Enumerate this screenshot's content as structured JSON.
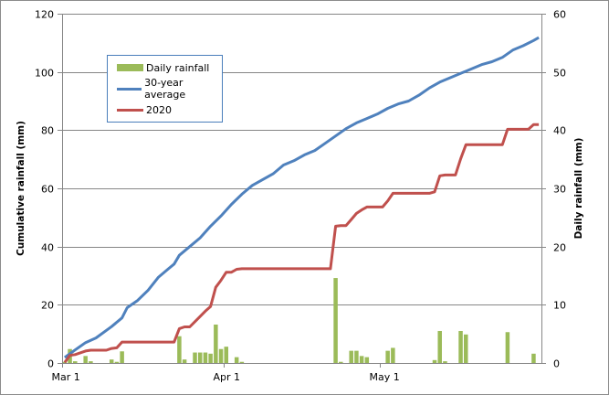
{
  "chart_data": {
    "type": "bar+line",
    "title": "",
    "xlabel": "",
    "ylabel": "Cumulative rainfall (mm)",
    "y2label": "Daily rainfall (mm)",
    "ylim": [
      0,
      120
    ],
    "y2lim": [
      0,
      60
    ],
    "yticks": [
      "0",
      "20",
      "40",
      "60",
      "80",
      "100",
      "120"
    ],
    "y2ticks": [
      "0",
      "10",
      "20",
      "30",
      "40",
      "50",
      "60"
    ],
    "xticks": [
      {
        "label": "Mar 1",
        "day": 0
      },
      {
        "label": "Apr 1",
        "day": 31
      },
      {
        "label": "May 1",
        "day": 61
      }
    ],
    "days": 92,
    "grid": true,
    "legend_position": "upper-left inside",
    "series": [
      {
        "name": "Daily rainfall",
        "type": "bar",
        "axis": "right",
        "color": "#9bbb59",
        "points": [
          {
            "day": 0,
            "value": 0.2
          },
          {
            "day": 1,
            "value": 2.4
          },
          {
            "day": 2,
            "value": 0.3
          },
          {
            "day": 4,
            "value": 1.2
          },
          {
            "day": 5,
            "value": 0.3
          },
          {
            "day": 9,
            "value": 0.6
          },
          {
            "day": 10,
            "value": 0.2
          },
          {
            "day": 11,
            "value": 2.0
          },
          {
            "day": 22,
            "value": 4.6
          },
          {
            "day": 23,
            "value": 0.6
          },
          {
            "day": 25,
            "value": 1.8
          },
          {
            "day": 26,
            "value": 1.8
          },
          {
            "day": 27,
            "value": 1.8
          },
          {
            "day": 28,
            "value": 1.6
          },
          {
            "day": 29,
            "value": 6.6
          },
          {
            "day": 30,
            "value": 2.4
          },
          {
            "day": 31,
            "value": 2.8
          },
          {
            "day": 33,
            "value": 1.0
          },
          {
            "day": 34,
            "value": 0.2
          },
          {
            "day": 52,
            "value": 14.6
          },
          {
            "day": 53,
            "value": 0.2
          },
          {
            "day": 55,
            "value": 2.1
          },
          {
            "day": 56,
            "value": 2.1
          },
          {
            "day": 57,
            "value": 1.2
          },
          {
            "day": 58,
            "value": 1.0
          },
          {
            "day": 62,
            "value": 2.1
          },
          {
            "day": 63,
            "value": 2.6
          },
          {
            "day": 71,
            "value": 0.5
          },
          {
            "day": 72,
            "value": 5.5
          },
          {
            "day": 73,
            "value": 0.3
          },
          {
            "day": 76,
            "value": 5.5
          },
          {
            "day": 77,
            "value": 4.9
          },
          {
            "day": 85,
            "value": 5.3
          },
          {
            "day": 90,
            "value": 1.6
          }
        ]
      },
      {
        "name": "30-year average",
        "type": "line",
        "axis": "left",
        "color": "#4f81bd",
        "points": [
          {
            "day": 0,
            "value": 1.9
          },
          {
            "day": 2,
            "value": 4.5
          },
          {
            "day": 4,
            "value": 7.0
          },
          {
            "day": 6,
            "value": 8.6
          },
          {
            "day": 9,
            "value": 12.5
          },
          {
            "day": 11,
            "value": 15.5
          },
          {
            "day": 12,
            "value": 19.0
          },
          {
            "day": 14,
            "value": 21.5
          },
          {
            "day": 16,
            "value": 25.0
          },
          {
            "day": 18,
            "value": 29.5
          },
          {
            "day": 20,
            "value": 32.5
          },
          {
            "day": 21,
            "value": 34.0
          },
          {
            "day": 22,
            "value": 37.0
          },
          {
            "day": 24,
            "value": 40.0
          },
          {
            "day": 26,
            "value": 43.0
          },
          {
            "day": 28,
            "value": 47.0
          },
          {
            "day": 30,
            "value": 50.5
          },
          {
            "day": 32,
            "value": 54.5
          },
          {
            "day": 34,
            "value": 58.0
          },
          {
            "day": 36,
            "value": 61.0
          },
          {
            "day": 38,
            "value": 63.0
          },
          {
            "day": 40,
            "value": 65.0
          },
          {
            "day": 42,
            "value": 68.0
          },
          {
            "day": 44,
            "value": 69.5
          },
          {
            "day": 46,
            "value": 71.5
          },
          {
            "day": 48,
            "value": 73.0
          },
          {
            "day": 50,
            "value": 75.5
          },
          {
            "day": 52,
            "value": 78.0
          },
          {
            "day": 54,
            "value": 80.5
          },
          {
            "day": 56,
            "value": 82.5
          },
          {
            "day": 58,
            "value": 84.0
          },
          {
            "day": 60,
            "value": 85.5
          },
          {
            "day": 62,
            "value": 87.5
          },
          {
            "day": 64,
            "value": 89.0
          },
          {
            "day": 66,
            "value": 90.0
          },
          {
            "day": 68,
            "value": 92.0
          },
          {
            "day": 70,
            "value": 94.5
          },
          {
            "day": 72,
            "value": 96.5
          },
          {
            "day": 74,
            "value": 98.0
          },
          {
            "day": 76,
            "value": 99.5
          },
          {
            "day": 78,
            "value": 101.0
          },
          {
            "day": 80,
            "value": 102.5
          },
          {
            "day": 82,
            "value": 103.5
          },
          {
            "day": 84,
            "value": 105.0
          },
          {
            "day": 86,
            "value": 107.5
          },
          {
            "day": 88,
            "value": 109.0
          },
          {
            "day": 90,
            "value": 110.8
          },
          {
            "day": 91,
            "value": 111.8
          }
        ]
      },
      {
        "name": "2020",
        "type": "line",
        "axis": "left",
        "color": "#c0504d",
        "points": [
          {
            "day": 0,
            "value": 0.2
          },
          {
            "day": 1,
            "value": 2.6
          },
          {
            "day": 2,
            "value": 2.9
          },
          {
            "day": 4,
            "value": 4.1
          },
          {
            "day": 5,
            "value": 4.4
          },
          {
            "day": 8,
            "value": 4.4
          },
          {
            "day": 9,
            "value": 5.0
          },
          {
            "day": 10,
            "value": 5.2
          },
          {
            "day": 11,
            "value": 7.2
          },
          {
            "day": 21,
            "value": 7.2
          },
          {
            "day": 22,
            "value": 11.8
          },
          {
            "day": 23,
            "value": 12.4
          },
          {
            "day": 24,
            "value": 12.4
          },
          {
            "day": 25,
            "value": 14.2
          },
          {
            "day": 26,
            "value": 16.0
          },
          {
            "day": 27,
            "value": 17.8
          },
          {
            "day": 28,
            "value": 19.4
          },
          {
            "day": 29,
            "value": 26.0
          },
          {
            "day": 30,
            "value": 28.4
          },
          {
            "day": 31,
            "value": 31.2
          },
          {
            "day": 32,
            "value": 31.2
          },
          {
            "day": 33,
            "value": 32.2
          },
          {
            "day": 34,
            "value": 32.4
          },
          {
            "day": 51,
            "value": 32.4
          },
          {
            "day": 52,
            "value": 47.0
          },
          {
            "day": 53,
            "value": 47.2
          },
          {
            "day": 54,
            "value": 47.2
          },
          {
            "day": 55,
            "value": 49.3
          },
          {
            "day": 56,
            "value": 51.4
          },
          {
            "day": 57,
            "value": 52.6
          },
          {
            "day": 58,
            "value": 53.6
          },
          {
            "day": 61,
            "value": 53.6
          },
          {
            "day": 62,
            "value": 55.7
          },
          {
            "day": 63,
            "value": 58.3
          },
          {
            "day": 70,
            "value": 58.3
          },
          {
            "day": 71,
            "value": 58.8
          },
          {
            "day": 72,
            "value": 64.3
          },
          {
            "day": 73,
            "value": 64.6
          },
          {
            "day": 75,
            "value": 64.6
          },
          {
            "day": 76,
            "value": 70.1
          },
          {
            "day": 77,
            "value": 75.0
          },
          {
            "day": 84,
            "value": 75.0
          },
          {
            "day": 85,
            "value": 80.3
          },
          {
            "day": 89,
            "value": 80.3
          },
          {
            "day": 90,
            "value": 81.9
          },
          {
            "day": 91,
            "value": 81.9
          }
        ]
      }
    ]
  },
  "legend": {
    "items": [
      {
        "label": "Daily rainfall",
        "color": "#9bbb59",
        "kind": "bar"
      },
      {
        "label": "30-year average",
        "color": "#4f81bd",
        "kind": "line"
      },
      {
        "label": "2020",
        "color": "#c0504d",
        "kind": "line"
      }
    ]
  },
  "axes": {
    "left_title": "Cumulative rainfall (mm)",
    "right_title": "Daily rainfall (mm)",
    "gridline_color": "#868686",
    "axis_color": "#868686"
  }
}
